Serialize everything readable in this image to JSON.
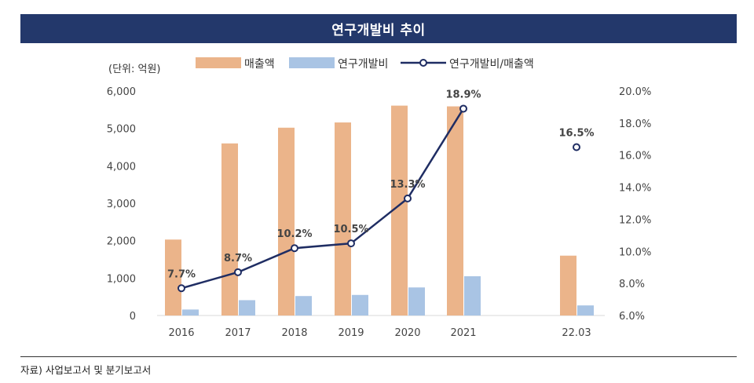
{
  "title": "연구개발비 추이",
  "source": "자료) 사업보고서 및 분기보고서",
  "colors": {
    "header_bg": "#23386b",
    "sales": "#ebb48a",
    "rnd": "#a9c4e4",
    "ratio": "#1f2d63"
  },
  "chart_data": {
    "type": "bar",
    "unit_label": "(단위: 억원)",
    "categories": [
      "2016",
      "2017",
      "2018",
      "2019",
      "2020",
      "2021",
      "22.03"
    ],
    "series": [
      {
        "name": "매출액",
        "type": "bar",
        "axis": "left",
        "values": [
          2030,
          4600,
          5020,
          5160,
          5610,
          5590,
          1600
        ]
      },
      {
        "name": "연구개발비",
        "type": "bar",
        "axis": "left",
        "values": [
          160,
          410,
          520,
          550,
          750,
          1050,
          270
        ]
      },
      {
        "name": "연구개발비/매출액",
        "type": "line",
        "axis": "right",
        "unit": "%",
        "values": [
          7.7,
          8.7,
          10.2,
          10.5,
          13.3,
          18.9,
          16.5
        ],
        "labels": [
          "7.7%",
          "8.7%",
          "10.2%",
          "10.5%",
          "13.3%",
          "18.9%",
          "16.5%"
        ]
      }
    ],
    "y_left": {
      "min": 0,
      "max": 6000,
      "ticks": [
        "0",
        "1,000",
        "2,000",
        "3,000",
        "4,000",
        "5,000",
        "6,000"
      ]
    },
    "y_right": {
      "min": 6.0,
      "max": 20.0,
      "ticks": [
        "6.0%",
        "8.0%",
        "10.0%",
        "12.0%",
        "14.0%",
        "16.0%",
        "18.0%",
        "20.0%"
      ]
    },
    "legend": {
      "position": "top"
    },
    "grid": false
  }
}
